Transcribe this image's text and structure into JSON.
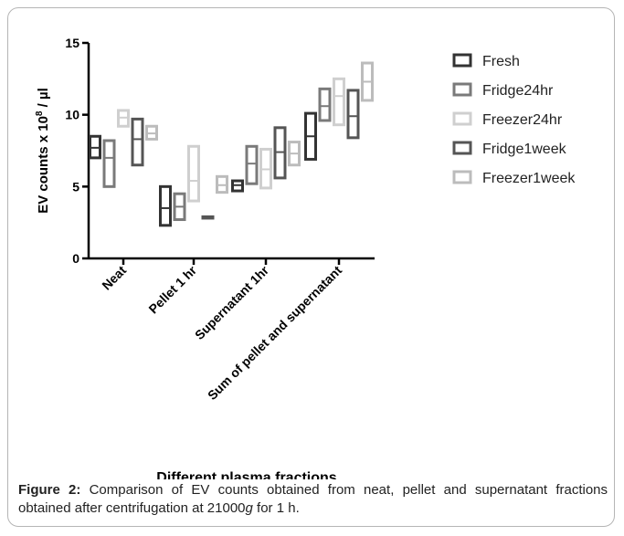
{
  "chart_data": {
    "type": "floating_bar",
    "ylabel": {
      "main": "EV counts x  10",
      "sup": "8",
      "unit": " / µl"
    },
    "xlabel": "Different plasma fractions",
    "categories": [
      "Neat",
      "Pellet 1 hr",
      "Supernatant 1hr",
      "Sum of pellet and supernatant"
    ],
    "ylim": [
      0,
      15
    ],
    "yticks": [
      0,
      5,
      10,
      15
    ],
    "series": [
      {
        "name": "Fresh",
        "color": "#333333",
        "high": [
          8.5,
          5.0,
          5.4,
          10.1
        ],
        "low": [
          7.0,
          2.3,
          4.7,
          6.9
        ],
        "mean": [
          7.7,
          3.5,
          5.1,
          8.5
        ]
      },
      {
        "name": "Fridge24hr",
        "color": "#7a7a7a",
        "high": [
          8.2,
          4.5,
          7.8,
          11.8
        ],
        "low": [
          5.0,
          2.7,
          5.2,
          9.6
        ],
        "mean": [
          7.0,
          3.6,
          6.6,
          10.6
        ]
      },
      {
        "name": "Freezer24hr",
        "color": "#cfcfcf",
        "high": [
          10.3,
          7.8,
          7.6,
          12.5
        ],
        "low": [
          9.2,
          4.0,
          4.9,
          9.3
        ],
        "mean": [
          9.8,
          5.4,
          6.2,
          11.3
        ]
      },
      {
        "name": "Fridge1week",
        "color": "#555555",
        "high": [
          9.7,
          2.9,
          9.1,
          11.7
        ],
        "low": [
          6.5,
          2.8,
          5.6,
          8.4
        ],
        "mean": [
          8.3,
          2.85,
          7.4,
          9.9
        ]
      },
      {
        "name": "Freezer1week",
        "color": "#bcbcbc",
        "high": [
          9.2,
          5.7,
          8.1,
          13.6
        ],
        "low": [
          8.3,
          4.6,
          6.5,
          11.0
        ],
        "mean": [
          8.7,
          5.1,
          7.3,
          12.3
        ]
      }
    ]
  },
  "caption": {
    "label": "Figure 2:",
    "text": " Comparison of EV counts obtained from neat, pellet and supernatant fractions obtained after centrifugation at 21000",
    "italic": "g",
    "end": " for 1 h."
  }
}
